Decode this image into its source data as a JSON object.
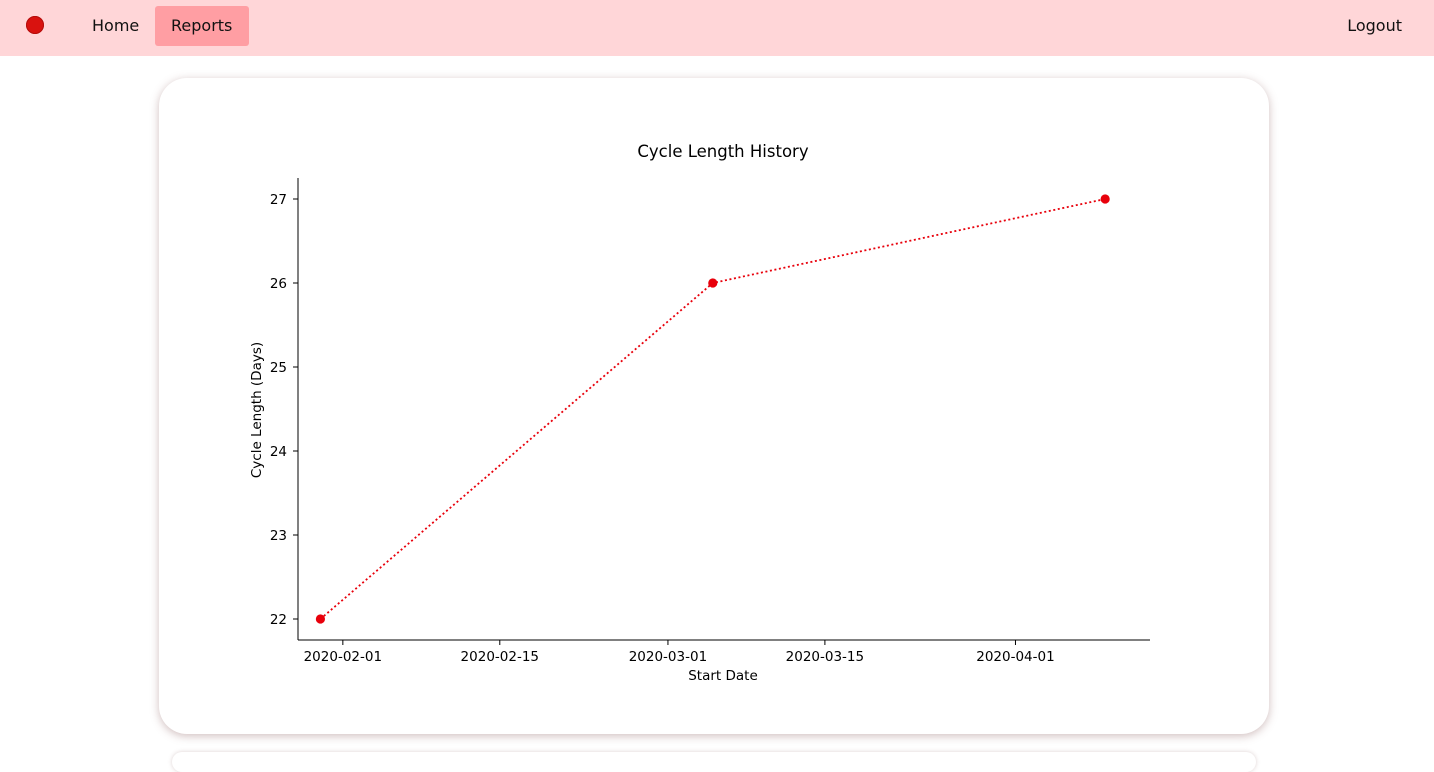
{
  "nav": {
    "home_label": "Home",
    "reports_label": "Reports",
    "logout_label": "Logout",
    "logo_icon": "red-dot-logo-icon",
    "colors": {
      "navbar_bg": "#ffd6d8",
      "active_tab_bg": "#ff9ea3",
      "logo": "#d9120f"
    }
  },
  "chart_data": {
    "type": "line",
    "title": "Cycle Length History",
    "xlabel": "Start Date",
    "ylabel": "Cycle Length (Days)",
    "line_style": "dotted",
    "marker": "circle",
    "color": "#e8000b",
    "grid": false,
    "x": [
      "2020-01-30",
      "2020-03-05",
      "2020-04-09"
    ],
    "y": [
      22,
      26,
      27
    ],
    "xlim": [
      "2020-01-28",
      "2020-04-13"
    ],
    "ylim": [
      21.75,
      27.25
    ],
    "x_ticks": [
      "2020-02-01",
      "2020-02-15",
      "2020-03-01",
      "2020-03-15",
      "2020-04-01"
    ],
    "y_ticks": [
      22,
      23,
      24,
      25,
      26,
      27
    ]
  }
}
